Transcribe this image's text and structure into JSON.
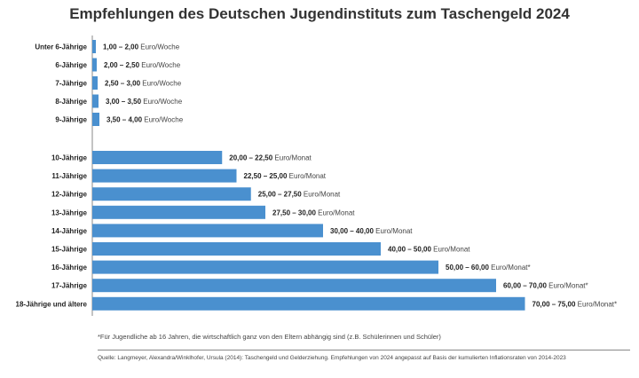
{
  "chart_data": {
    "type": "bar",
    "orientation": "horizontal",
    "title": "Empfehlungen des Deutschen Jugendinstituts zum Taschengeld 2024",
    "xlabel": "",
    "ylabel": "",
    "grid": false,
    "groups": [
      {
        "unit": "Euro/Woche",
        "categories": [
          "Unter 6-Jährige",
          "6-Jährige",
          "7-Jährige",
          "8-Jährige",
          "9-Jährige"
        ],
        "value_labels": [
          "1,00 – 2,00",
          "2,00 – 2,50",
          "2,50 – 3,00",
          "3,00 – 3,50",
          "3,50 – 4,00"
        ],
        "unit_labels": [
          "Euro/Woche",
          "Euro/Woche",
          "Euro/Woche",
          "Euro/Woche",
          "Euro/Woche"
        ],
        "values": [
          2.0,
          2.5,
          3.0,
          3.5,
          4.0
        ]
      },
      {
        "unit": "Euro/Monat",
        "categories": [
          "10-Jährige",
          "11-Jährige",
          "12-Jährige",
          "13-Jährige",
          "14-Jährige",
          "15-Jährige",
          "16-Jährige",
          "17-Jährige",
          "18-Jährige und ältere"
        ],
        "value_labels": [
          "20,00 – 22,50",
          "22,50 – 25,00",
          "25,00 – 27,50",
          "27,50 – 30,00",
          "30,00 – 40,00",
          "40,00 – 50,00",
          "50,00 – 60,00",
          "60,00 – 70,00",
          "70,00 – 75,00"
        ],
        "unit_labels": [
          "Euro/Monat",
          "Euro/Monat",
          "Euro/Monat",
          "Euro/Monat",
          "Euro/Monat",
          "Euro/Monat",
          "Euro/Monat*",
          "Euro/Monat*",
          "Euro/Monat*"
        ],
        "values": [
          22.5,
          25.0,
          27.5,
          30.0,
          40.0,
          50.0,
          60.0,
          70.0,
          75.0
        ]
      }
    ],
    "footnote": "*Für Jugendliche ab 16 Jahren, die wirtschaftlich ganz von den Eltern abhängig sind (z.B. Schülerinnen und Schüler)",
    "source": "Quelle: Langmeyer, Alexandra/Winklhofer, Ursula (2014): Taschengeld und Gelderziehung. Empfehlungen von 2024 angepasst auf Basis der kumulierten Inflationsraten von 2014-2023"
  },
  "colors": {
    "bar": "#4a90cf",
    "text": "#222222"
  }
}
